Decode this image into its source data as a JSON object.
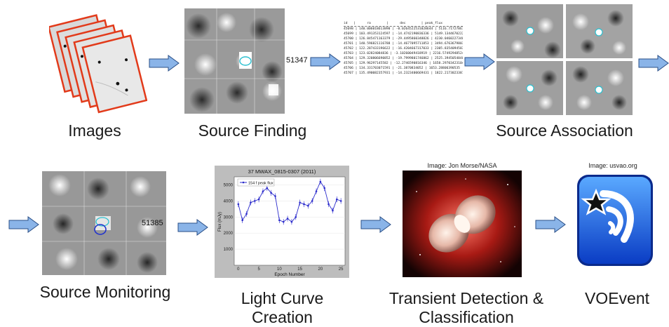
{
  "stages": [
    {
      "label": "Images"
    },
    {
      "label": "Source Finding"
    },
    {
      "label": "Source Association"
    },
    {
      "label": "Source Monitoring"
    },
    {
      "label": "Light Curve Creation"
    },
    {
      "label": "Transient Detection & Classification"
    },
    {
      "label": "VOEvent"
    }
  ],
  "source_finding": {
    "source_id": "51347"
  },
  "source_monitoring": {
    "source_id": "51385"
  },
  "association_table": {
    "header": "id   |      ra        |      dec        | peak_flux",
    "rows": [
      "45698 | 140.006018613890 | -0.0264522531028644 | 5116.71727867957",
      "45699 | 103.491353124597 | -14.4742190836336 | 5149.13446702225",
      "45700 | 126.845471163379 | -29.4495860348826 | 4230.04602273483",
      "45701 | 140.596821116788 | -14.4677095711853 | 3494.67636798031",
      "45702 | 122.287433196622 | -16.4204667317033 | 2305.83540945837",
      "45703 | 123.02824084836 | -3.10260049418919 | 2216.57492948524",
      "45704 | 129.320806690852 | -19.7999801746862 | 2525.39450548402",
      "45705 | 129.96297145582 | -12.2746590816346 | 1658.29703423104",
      "45706 | 134.331703071591 | -21.3870834052 | 1653.28806390535",
      "45707 | 135.490082357931 | -14.2323400669431 | 1822.21730233811"
    ]
  },
  "light_curve": {
    "title": "37 MWAX_0815-0307 (2011)",
    "legend": "154 f peak flux",
    "xlabel": "Epoch Number",
    "ylabel": "Flux (mJy)"
  },
  "credits": {
    "transient": "Image: Jon Morse/NASA",
    "voevent": "Image: usvao.org"
  },
  "colors": {
    "arrow_fill": "#8ab4e8",
    "arrow_stroke": "#2a4f87",
    "curve": "#2b2bcc",
    "marker": "#2bc0d0"
  },
  "chart_data": {
    "type": "line",
    "title": "37 MWAX_0815-0307 (2011)",
    "xlabel": "Epoch Number",
    "ylabel": "Flux (mJy)",
    "xlim": [
      -1,
      26
    ],
    "ylim": [
      0,
      5500
    ],
    "x_ticks": [
      0,
      5,
      10,
      15,
      20,
      25
    ],
    "y_ticks": [
      1000,
      2000,
      3000,
      4000,
      5000
    ],
    "series": [
      {
        "name": "154 f peak flux",
        "x": [
          0,
          1,
          2,
          3,
          4,
          5,
          6,
          7,
          8,
          9,
          10,
          11,
          12,
          13,
          14,
          15,
          16,
          17,
          18,
          19,
          20,
          21,
          22,
          23,
          24,
          25
        ],
        "y": [
          3800,
          2800,
          3200,
          3900,
          4000,
          4100,
          4600,
          4800,
          4500,
          4300,
          2800,
          2700,
          2900,
          2700,
          3000,
          3900,
          3800,
          3700,
          4000,
          4600,
          5200,
          4800,
          3800,
          3400,
          4100,
          4000
        ]
      }
    ]
  }
}
